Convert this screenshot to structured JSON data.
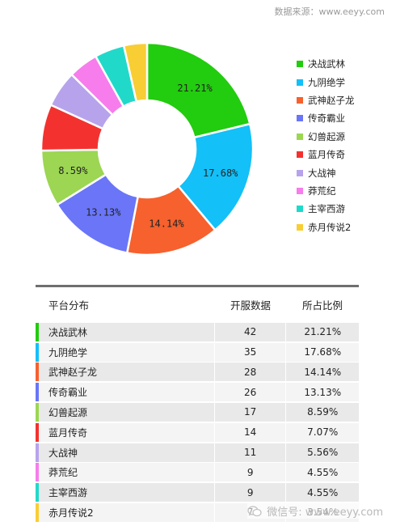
{
  "source_text": "数据来源：www.eeyy.com",
  "watermark_text": "微信号: www.eeyy.com",
  "chart_data": {
    "type": "pie",
    "categories": [
      "决战武林",
      "九阴绝学",
      "武神赵子龙",
      "传奇霸业",
      "幻兽起源",
      "蓝月传奇",
      "大战神",
      "莽荒纪",
      "主宰西游",
      "赤月传说2"
    ],
    "values": [
      42,
      35,
      28,
      26,
      17,
      14,
      11,
      9,
      9,
      7
    ],
    "colors": [
      "#22cc0e",
      "#13c0f8",
      "#f6612e",
      "#6a76f7",
      "#9cd652",
      "#f3322f",
      "#b7a3ec",
      "#f67deb",
      "#21d9c9",
      "#f9ce35"
    ],
    "slice_labels": [
      "21.21%",
      "17.68%",
      "14.14%",
      "13.13%",
      "8.59%",
      "",
      "",
      "",
      "",
      ""
    ],
    "legend_position": "right"
  },
  "table": {
    "headers": [
      "平台分布",
      "开服数据",
      "所占比例"
    ],
    "rows": [
      {
        "name": "决战武林",
        "count": "42",
        "pct": "21.21%"
      },
      {
        "name": "九阴绝学",
        "count": "35",
        "pct": "17.68%"
      },
      {
        "name": "武神赵子龙",
        "count": "28",
        "pct": "14.14%"
      },
      {
        "name": "传奇霸业",
        "count": "26",
        "pct": "13.13%"
      },
      {
        "name": "幻兽起源",
        "count": "17",
        "pct": "8.59%"
      },
      {
        "name": "蓝月传奇",
        "count": "14",
        "pct": "7.07%"
      },
      {
        "name": "大战神",
        "count": "11",
        "pct": "5.56%"
      },
      {
        "name": "莽荒纪",
        "count": "9",
        "pct": "4.55%"
      },
      {
        "name": "主宰西游",
        "count": "9",
        "pct": "4.55%"
      },
      {
        "name": "赤月传说2",
        "count": "7",
        "pct": "3.54%"
      }
    ]
  }
}
